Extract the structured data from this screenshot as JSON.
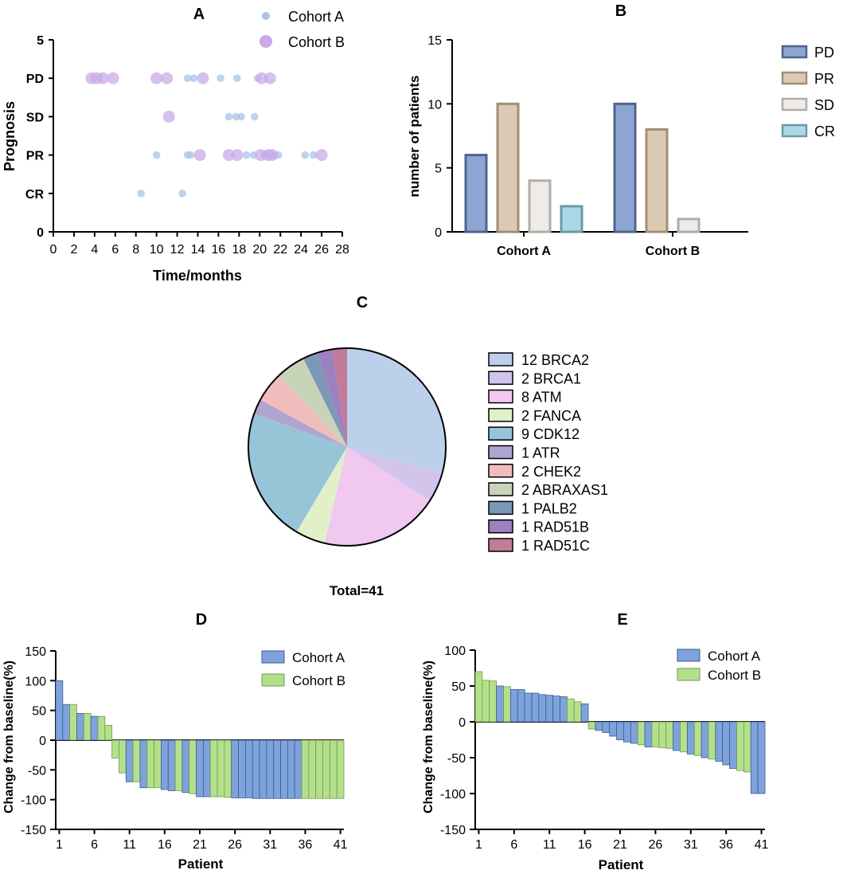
{
  "chart_data": [
    {
      "id": "A",
      "panel_label": "A",
      "type": "scatter",
      "xlabel": "Time/months",
      "ylabel": "Prognosis",
      "xlim": [
        0,
        28
      ],
      "ylim": [
        0,
        5
      ],
      "xticks": [
        "0",
        "2",
        "4",
        "6",
        "8",
        "10",
        "12",
        "14",
        "16",
        "18",
        "20",
        "22",
        "24",
        "26",
        "28"
      ],
      "yticks": [
        {
          "value": 0,
          "label": "0"
        },
        {
          "value": 1,
          "label": "CR"
        },
        {
          "value": 2,
          "label": "PR"
        },
        {
          "value": 3,
          "label": "SD"
        },
        {
          "value": 4,
          "label": "PD"
        },
        {
          "value": 5,
          "label": "5"
        }
      ],
      "series": [
        {
          "name": "Cohort A",
          "color": "#a9c3e8",
          "size": "small",
          "points": [
            [
              13,
              4
            ],
            [
              13.6,
              4
            ],
            [
              16.2,
              4
            ],
            [
              17.8,
              4
            ],
            [
              19.8,
              4
            ],
            [
              17,
              3
            ],
            [
              17.7,
              3
            ],
            [
              18.2,
              3
            ],
            [
              19.5,
              3
            ],
            [
              10,
              2
            ],
            [
              13,
              2
            ],
            [
              13.3,
              2
            ],
            [
              18.7,
              2
            ],
            [
              19.4,
              2
            ],
            [
              20.5,
              2
            ],
            [
              21.4,
              2
            ],
            [
              21.8,
              2
            ],
            [
              24.4,
              2
            ],
            [
              25.2,
              2
            ],
            [
              8.5,
              1
            ],
            [
              12.5,
              1
            ]
          ]
        },
        {
          "name": "Cohort B",
          "color": "#c9a9e8",
          "size": "large",
          "points": [
            [
              3.7,
              4
            ],
            [
              4.2,
              4
            ],
            [
              4.8,
              4
            ],
            [
              5.8,
              4
            ],
            [
              10,
              4
            ],
            [
              11,
              4
            ],
            [
              14.5,
              4
            ],
            [
              20.2,
              4
            ],
            [
              21,
              4
            ],
            [
              11.2,
              3
            ],
            [
              14.2,
              2
            ],
            [
              17,
              2
            ],
            [
              17.8,
              2
            ],
            [
              20.1,
              2
            ],
            [
              20.8,
              2
            ],
            [
              21.2,
              2
            ],
            [
              26,
              2
            ]
          ]
        }
      ]
    },
    {
      "id": "B",
      "panel_label": "B",
      "type": "bar",
      "ylabel": "number of patients",
      "ylim": [
        0,
        15
      ],
      "yticks": [
        "0",
        "5",
        "10",
        "15"
      ],
      "categories": [
        "Cohort A",
        "Cohort B"
      ],
      "series": [
        {
          "name": "PD",
          "fill": "#8ea5d2",
          "stroke": "#4d648c",
          "values": [
            6,
            10
          ]
        },
        {
          "name": "PR",
          "fill": "#dbcbb4",
          "stroke": "#a08f74",
          "values": [
            10,
            8
          ]
        },
        {
          "name": "SD",
          "fill": "#efebe8",
          "stroke": "#b0aca8",
          "values": [
            4,
            1
          ]
        },
        {
          "name": "CR",
          "fill": "#aad8e6",
          "stroke": "#6b9aa8",
          "values": [
            2,
            0
          ]
        }
      ]
    },
    {
      "id": "C",
      "panel_label": "C",
      "type": "pie",
      "total_label": "Total=41",
      "slices": [
        {
          "label": "12 BRCA2",
          "value": 12,
          "color": "#bcd0ec"
        },
        {
          "label": "2 BRCA1",
          "value": 2,
          "color": "#d3c4ec"
        },
        {
          "label": "8 ATM",
          "value": 8,
          "color": "#f0c8f0"
        },
        {
          "label": "2 FANCA",
          "value": 2,
          "color": "#e2f0c8"
        },
        {
          "label": "9 CDK12",
          "value": 9,
          "color": "#98c4d8"
        },
        {
          "label": "1 ATR",
          "value": 1,
          "color": "#b0a4d0"
        },
        {
          "label": "2 CHEK2",
          "value": 2,
          "color": "#f0bcbc"
        },
        {
          "label": "2 ABRAXAS1",
          "value": 2,
          "color": "#c8d4b8"
        },
        {
          "label": "1 PALB2",
          "value": 1,
          "color": "#7c98b8"
        },
        {
          "label": "1 RAD51B",
          "value": 1,
          "color": "#9c80c0"
        },
        {
          "label": "1 RAD51C",
          "value": 1,
          "color": "#c07c98"
        }
      ]
    },
    {
      "id": "D",
      "panel_label": "D",
      "type": "bar",
      "ylabel": "Change from baseline(%)",
      "xlabel": "Patient",
      "ylim": [
        -150,
        150
      ],
      "yticks": [
        "150",
        "100",
        "50",
        "0",
        "-50",
        "-100",
        "-150"
      ],
      "xticks": [
        "1",
        "6",
        "11",
        "16",
        "21",
        "26",
        "31",
        "36",
        "41"
      ],
      "legend": [
        {
          "name": "Cohort A",
          "color": "#7ea3dc"
        },
        {
          "name": "Cohort B",
          "color": "#b4e08c"
        }
      ],
      "cohorts": [
        "A",
        "A",
        "B",
        "A",
        "B",
        "A",
        "B",
        "B",
        "B",
        "B",
        "A",
        "B",
        "A",
        "B",
        "B",
        "A",
        "A",
        "B",
        "A",
        "B",
        "A",
        "A",
        "B",
        "B",
        "B",
        "A",
        "A",
        "A",
        "A",
        "A",
        "A",
        "A",
        "A",
        "A",
        "A",
        "B",
        "B",
        "B",
        "B",
        "B",
        "B"
      ],
      "values": [
        100,
        60,
        60,
        45,
        45,
        40,
        40,
        25,
        -30,
        -55,
        -70,
        -70,
        -80,
        -80,
        -80,
        -83,
        -85,
        -85,
        -88,
        -90,
        -95,
        -95,
        -95,
        -95,
        -96,
        -97,
        -97,
        -97,
        -98,
        -98,
        -98,
        -98,
        -98,
        -98,
        -98,
        -98,
        -98,
        -98,
        -98,
        -98,
        -98
      ]
    },
    {
      "id": "E",
      "panel_label": "E",
      "type": "bar",
      "ylabel": "Change from baseline(%)",
      "xlabel": "Patient",
      "ylim": [
        -150,
        100
      ],
      "yticks": [
        "100",
        "50",
        "0",
        "-50",
        "-100",
        "-150"
      ],
      "xticks": [
        "1",
        "6",
        "11",
        "16",
        "21",
        "26",
        "31",
        "36",
        "41"
      ],
      "legend": [
        {
          "name": "Cohort A",
          "color": "#7ea3dc"
        },
        {
          "name": "Cohort B",
          "color": "#b4e08c"
        }
      ],
      "cohorts": [
        "B",
        "B",
        "B",
        "A",
        "B",
        "A",
        "A",
        "A",
        "A",
        "A",
        "A",
        "A",
        "A",
        "B",
        "B",
        "A",
        "B",
        "A",
        "A",
        "A",
        "A",
        "A",
        "A",
        "B",
        "A",
        "B",
        "B",
        "B",
        "A",
        "B",
        "A",
        "B",
        "A",
        "B",
        "A",
        "A",
        "A",
        "B",
        "B",
        "A",
        "A"
      ],
      "values": [
        70,
        58,
        57,
        50,
        49,
        45,
        45,
        40,
        40,
        38,
        37,
        36,
        35,
        32,
        28,
        25,
        -10,
        -12,
        -15,
        -20,
        -25,
        -28,
        -30,
        -32,
        -35,
        -35,
        -36,
        -37,
        -40,
        -42,
        -45,
        -47,
        -50,
        -52,
        -55,
        -60,
        -65,
        -68,
        -70,
        -100,
        -100
      ]
    }
  ]
}
